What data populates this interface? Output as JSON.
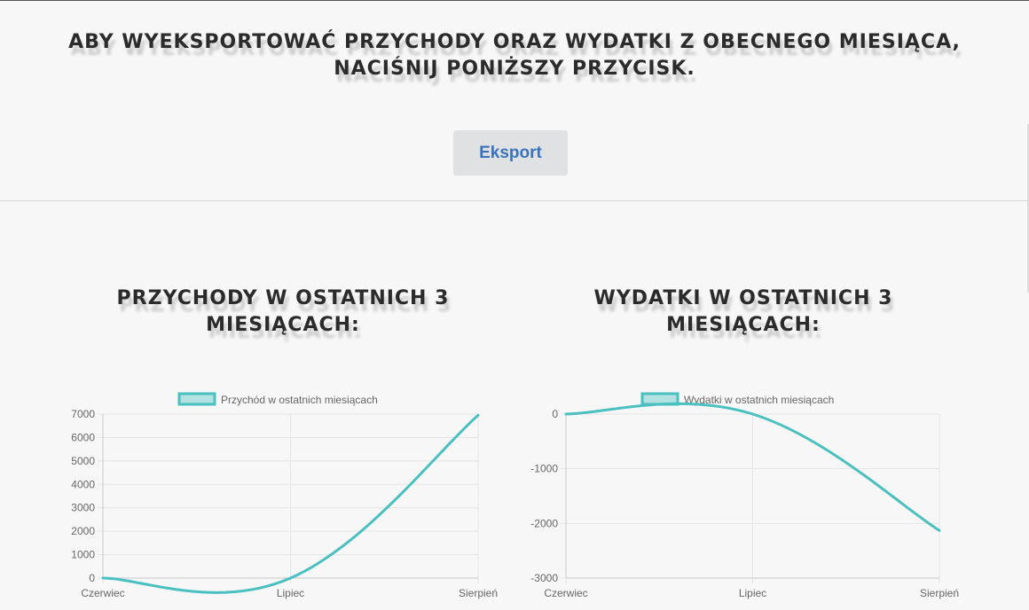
{
  "export_section": {
    "heading": "Aby wyeksportować przychody oraz wydatki z obecnego miesiąca, naciśnij poniższy przycisk.",
    "button_label": "Eksport"
  },
  "colors": {
    "line": "#4bc0c0",
    "legend_fill": "rgba(75,192,192,0.4)",
    "grid": "#e5e5e5",
    "text": "#666666",
    "button_text": "#3b73b9"
  },
  "chart_data": [
    {
      "type": "line",
      "title": "Przychody w ostatnich 3 miesiącach:",
      "categories": [
        "Czerwiec",
        "Lipiec",
        "Sierpień"
      ],
      "series": [
        {
          "name": "Przychód w ostatnich miesiącach",
          "values": [
            0,
            0,
            6950
          ]
        }
      ],
      "yticks": [
        0,
        1000,
        2000,
        3000,
        4000,
        5000,
        6000,
        7000
      ],
      "ylim": [
        0,
        7000
      ],
      "grid": true,
      "legend": "top"
    },
    {
      "type": "line",
      "title": "Wydatki w ostatnich 3 miesiącach:",
      "categories": [
        "Czerwiec",
        "Lipiec",
        "Sierpień"
      ],
      "series": [
        {
          "name": "Wydatki w ostatnich miesiącach",
          "values": [
            0,
            0,
            -2130
          ]
        }
      ],
      "yticks": [
        0,
        -1000,
        -2000,
        -3000
      ],
      "ylim": [
        -3000,
        0
      ],
      "grid": true,
      "legend": "top"
    }
  ]
}
